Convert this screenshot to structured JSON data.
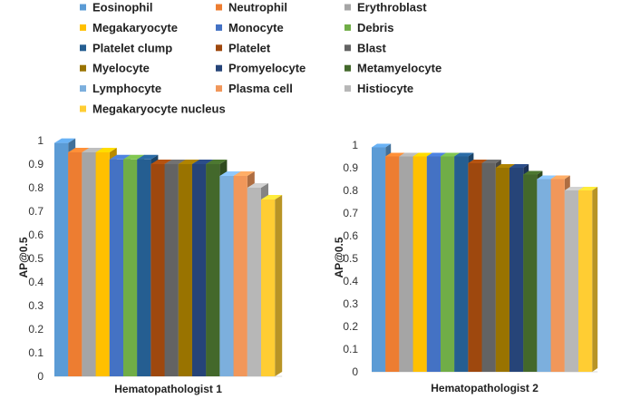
{
  "chart_data": {
    "type": "bar",
    "style": "3d-clustered-column",
    "legend": {
      "position": "top",
      "entries": [
        {
          "name": "Eosinophil",
          "color": "#5B9BD5"
        },
        {
          "name": "Neutrophil",
          "color": "#ED7D31"
        },
        {
          "name": "Erythroblast",
          "color": "#A5A5A5"
        },
        {
          "name": "Megakaryocyte",
          "color": "#FFC000"
        },
        {
          "name": "Monocyte",
          "color": "#4472C4"
        },
        {
          "name": "Debris",
          "color": "#70AD47"
        },
        {
          "name": "Platelet clump",
          "color": "#255E91"
        },
        {
          "name": "Platelet",
          "color": "#9E480E"
        },
        {
          "name": "Blast",
          "color": "#636363"
        },
        {
          "name": "Myelocyte",
          "color": "#997300"
        },
        {
          "name": "Promyelocyte",
          "color": "#264478"
        },
        {
          "name": "Metamyelocyte",
          "color": "#43682B"
        },
        {
          "name": "Lymphocyte",
          "color": "#7CAFDD"
        },
        {
          "name": "Plasma cell",
          "color": "#F1975A"
        },
        {
          "name": "Histiocyte",
          "color": "#B7B7B7"
        },
        {
          "name": "Megakaryocyte nucleus",
          "color": "#FFCD33"
        }
      ]
    },
    "charts": [
      {
        "category": "Hematopathologist 1",
        "ylabel": "AP@0.5",
        "ylim": [
          0,
          1
        ],
        "yticks": [
          "0",
          "0.1",
          "0.2",
          "0.3",
          "0.4",
          "0.5",
          "0.6",
          "0.7",
          "0.8",
          "0.9",
          "1"
        ],
        "values": [
          0.99,
          0.95,
          0.95,
          0.95,
          0.92,
          0.92,
          0.92,
          0.9,
          0.9,
          0.9,
          0.9,
          0.9,
          0.85,
          0.85,
          0.8,
          0.75
        ]
      },
      {
        "category": "Hematopathologist 2",
        "ylabel": "AP@0.5",
        "ylim": [
          0,
          1
        ],
        "yticks": [
          "0",
          "0.1",
          "0.2",
          "0.3",
          "0.4",
          "0.5",
          "0.6",
          "0.7",
          "0.8",
          "0.9",
          "1"
        ],
        "values": [
          0.99,
          0.95,
          0.95,
          0.95,
          0.95,
          0.95,
          0.95,
          0.92,
          0.92,
          0.9,
          0.9,
          0.87,
          0.85,
          0.85,
          0.8,
          0.8
        ]
      }
    ]
  }
}
